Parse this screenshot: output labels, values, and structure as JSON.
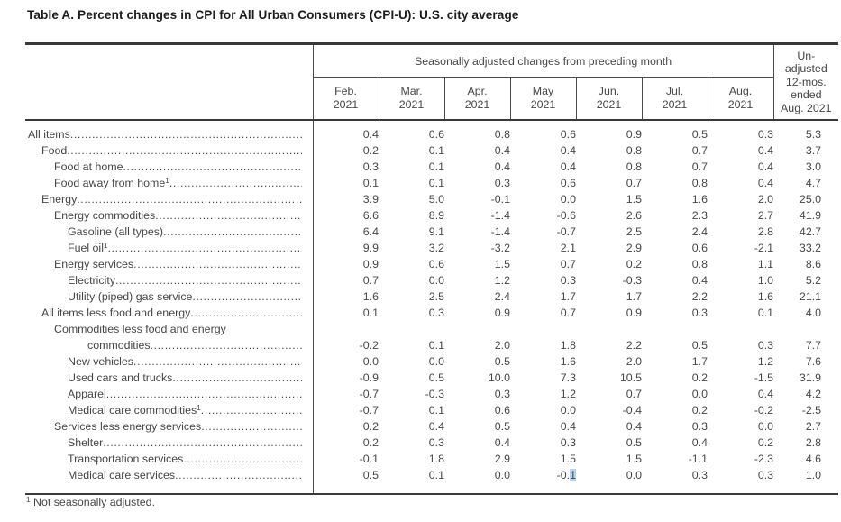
{
  "title": "Table A. Percent changes in CPI for All Urban Consumers (CPI-U): U.S. city average",
  "table": {
    "group_header": "Seasonally adjusted changes from preceding month",
    "unadjusted_header_lines": [
      "Un-",
      "adjusted",
      "12-mos.",
      "ended",
      "Aug. 2021"
    ],
    "month_columns": [
      {
        "line1": "Feb.",
        "line2": "2021"
      },
      {
        "line1": "Mar.",
        "line2": "2021"
      },
      {
        "line1": "Apr.",
        "line2": "2021"
      },
      {
        "line1": "May",
        "line2": "2021"
      },
      {
        "line1": "Jun.",
        "line2": "2021"
      },
      {
        "line1": "Jul.",
        "line2": "2021"
      },
      {
        "line1": "Aug.",
        "line2": "2021"
      }
    ],
    "rows": [
      {
        "label": "All items",
        "indent": 0,
        "sup": "",
        "values": [
          "0.4",
          "0.6",
          "0.8",
          "0.6",
          "0.9",
          "0.5",
          "0.3",
          "5.3"
        ]
      },
      {
        "label": "Food",
        "indent": 1,
        "sup": "",
        "values": [
          "0.2",
          "0.1",
          "0.4",
          "0.4",
          "0.8",
          "0.7",
          "0.4",
          "3.7"
        ]
      },
      {
        "label": "Food at home",
        "indent": 2,
        "sup": "",
        "values": [
          "0.3",
          "0.1",
          "0.4",
          "0.4",
          "0.8",
          "0.7",
          "0.4",
          "3.0"
        ]
      },
      {
        "label": "Food away from home",
        "indent": 2,
        "sup": "1",
        "values": [
          "0.1",
          "0.1",
          "0.3",
          "0.6",
          "0.7",
          "0.8",
          "0.4",
          "4.7"
        ]
      },
      {
        "label": "Energy",
        "indent": 1,
        "sup": "",
        "values": [
          "3.9",
          "5.0",
          "-0.1",
          "0.0",
          "1.5",
          "1.6",
          "2.0",
          "25.0"
        ]
      },
      {
        "label": "Energy commodities",
        "indent": 2,
        "sup": "",
        "values": [
          "6.6",
          "8.9",
          "-1.4",
          "-0.6",
          "2.6",
          "2.3",
          "2.7",
          "41.9"
        ]
      },
      {
        "label": "Gasoline (all types)",
        "indent": 3,
        "sup": "",
        "values": [
          "6.4",
          "9.1",
          "-1.4",
          "-0.7",
          "2.5",
          "2.4",
          "2.8",
          "42.7"
        ]
      },
      {
        "label": "Fuel oil",
        "indent": 3,
        "sup": "1",
        "values": [
          "9.9",
          "3.2",
          "-3.2",
          "2.1",
          "2.9",
          "0.6",
          "-2.1",
          "33.2"
        ]
      },
      {
        "label": "Energy services",
        "indent": 2,
        "sup": "",
        "values": [
          "0.9",
          "0.6",
          "1.5",
          "0.7",
          "0.2",
          "0.8",
          "1.1",
          "8.6"
        ]
      },
      {
        "label": "Electricity",
        "indent": 3,
        "sup": "",
        "values": [
          "0.7",
          "0.0",
          "1.2",
          "0.3",
          "-0.3",
          "0.4",
          "1.0",
          "5.2"
        ]
      },
      {
        "label": "Utility (piped) gas service",
        "indent": 3,
        "sup": "",
        "values": [
          "1.6",
          "2.5",
          "2.4",
          "1.7",
          "1.7",
          "2.2",
          "1.6",
          "21.1"
        ]
      },
      {
        "label": "All items less food and energy",
        "indent": 1,
        "sup": "",
        "values": [
          "0.1",
          "0.3",
          "0.9",
          "0.7",
          "0.9",
          "0.3",
          "0.1",
          "4.0"
        ]
      },
      {
        "label": "Commodities less food and energy",
        "label2": "commodities",
        "indent": 2,
        "sup": "",
        "values": [
          "-0.2",
          "0.1",
          "2.0",
          "1.8",
          "2.2",
          "0.5",
          "0.3",
          "7.7"
        ]
      },
      {
        "label": "New vehicles",
        "indent": 3,
        "sup": "",
        "values": [
          "0.0",
          "0.0",
          "0.5",
          "1.6",
          "2.0",
          "1.7",
          "1.2",
          "7.6"
        ]
      },
      {
        "label": "Used cars and trucks",
        "indent": 3,
        "sup": "",
        "values": [
          "-0.9",
          "0.5",
          "10.0",
          "7.3",
          "10.5",
          "0.2",
          "-1.5",
          "31.9"
        ]
      },
      {
        "label": "Apparel",
        "indent": 3,
        "sup": "",
        "values": [
          "-0.7",
          "-0.3",
          "0.3",
          "1.2",
          "0.7",
          "0.0",
          "0.4",
          "4.2"
        ]
      },
      {
        "label": "Medical care commodities",
        "indent": 3,
        "sup": "1",
        "values": [
          "-0.7",
          "0.1",
          "0.6",
          "0.0",
          "-0.4",
          "0.2",
          "-0.2",
          "-2.5"
        ]
      },
      {
        "label": "Services less energy services",
        "indent": 2,
        "sup": "",
        "values": [
          "0.2",
          "0.4",
          "0.5",
          "0.4",
          "0.4",
          "0.3",
          "0.0",
          "2.7"
        ]
      },
      {
        "label": "Shelter",
        "indent": 3,
        "sup": "",
        "values": [
          "0.2",
          "0.3",
          "0.4",
          "0.3",
          "0.5",
          "0.4",
          "0.2",
          "2.8"
        ]
      },
      {
        "label": "Transportation services",
        "indent": 3,
        "sup": "",
        "values": [
          "-0.1",
          "1.8",
          "2.9",
          "1.5",
          "1.5",
          "-1.1",
          "-2.3",
          "4.6"
        ]
      },
      {
        "label": "Medical care services",
        "indent": 3,
        "sup": "",
        "values": [
          "0.5",
          "0.1",
          "0.0",
          "-0.1",
          "0.0",
          "0.3",
          "0.3",
          "1.0"
        ]
      }
    ],
    "selection_highlight": {
      "row_index": 20,
      "value_index": 3,
      "before": "-0.",
      "selected": "1"
    }
  },
  "footnote": {
    "marker": "1",
    "text": "Not seasonally adjusted."
  },
  "colors": {
    "text": "#474747",
    "title": "#1d1d1d",
    "border_thin": "#4a4a4a",
    "border_thick": "#3a3a3a",
    "selection": "#b5d3ee"
  }
}
